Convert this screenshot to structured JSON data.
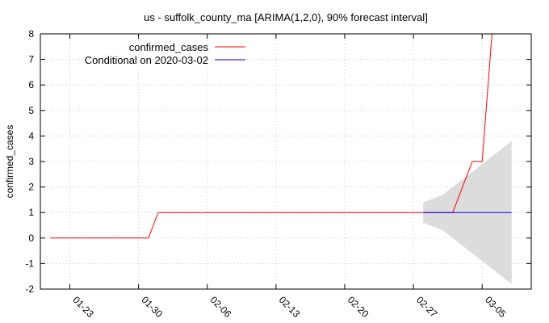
{
  "chart_data": {
    "type": "line",
    "title": "us - suffolk_county_ma [ARIMA(1,2,0), 90% forecast interval]",
    "xlabel": "",
    "ylabel": "confirmed_cases",
    "x_axis": {
      "type": "date",
      "range": [
        "2020-01-20",
        "2020-03-10"
      ],
      "tick_labels": [
        "01-23",
        "01-30",
        "02-06",
        "02-13",
        "02-20",
        "02-27",
        "03-05"
      ],
      "tick_dates": [
        "2020-01-23",
        "2020-01-30",
        "2020-02-06",
        "2020-02-13",
        "2020-02-20",
        "2020-02-27",
        "2020-03-05"
      ]
    },
    "ylim": [
      -2,
      8
    ],
    "y_ticks": [
      -2,
      -1,
      0,
      1,
      2,
      3,
      4,
      5,
      6,
      7,
      8
    ],
    "grid": true,
    "legend_position": "top-left",
    "series": [
      {
        "name": "confirmed_cases",
        "color": "#ff0000",
        "x": [
          "2020-01-21",
          "2020-01-31",
          "2020-02-01",
          "2020-03-02",
          "2020-03-03",
          "2020-03-04",
          "2020-03-05",
          "2020-03-06"
        ],
        "y": [
          0,
          0,
          1,
          1,
          2,
          3,
          3,
          8
        ]
      },
      {
        "name": "Conditional on 2020-03-02",
        "color": "#0000ff",
        "x": [
          "2020-02-28",
          "2020-03-08"
        ],
        "y": [
          1,
          1
        ]
      }
    ],
    "forecast_interval": {
      "color": "#dcdcdc",
      "x": [
        "2020-02-28",
        "2020-03-01",
        "2020-03-03",
        "2020-03-05",
        "2020-03-08"
      ],
      "upper": [
        1.4,
        1.7,
        2.3,
        2.9,
        3.8
      ],
      "lower": [
        0.6,
        0.3,
        -0.3,
        -0.9,
        -1.8
      ]
    }
  }
}
